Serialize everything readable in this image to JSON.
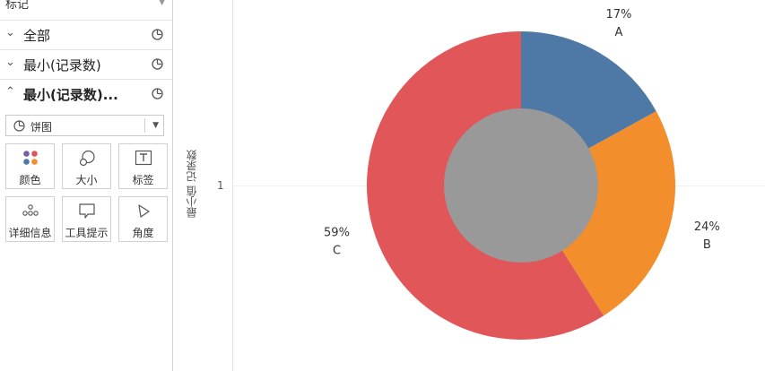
{
  "marks_panel": {
    "header": "标记",
    "shelves": [
      {
        "label": "全部",
        "bold": false,
        "expanded": false
      },
      {
        "label": "最小(记录数)",
        "bold": false,
        "expanded": false
      },
      {
        "label": "最小(记录数)...",
        "bold": true,
        "expanded": true
      }
    ],
    "mark_type": "饼图",
    "buttons": [
      {
        "label": "颜色",
        "icon": "color-dots-icon"
      },
      {
        "label": "大小",
        "icon": "size-icon"
      },
      {
        "label": "标签",
        "icon": "text-label-icon"
      },
      {
        "label": "详细信息",
        "icon": "detail-dots-icon"
      },
      {
        "label": "工具提示",
        "icon": "tooltip-icon"
      },
      {
        "label": "角度",
        "icon": "angle-icon"
      }
    ]
  },
  "view": {
    "axis_title": "最小值 记录数",
    "tick_label": "1"
  },
  "chart_data": {
    "type": "pie",
    "donut": true,
    "hole_color": "#999999",
    "categories": [
      "A",
      "B",
      "C"
    ],
    "values": [
      17,
      24,
      59
    ],
    "labels": [
      "17%",
      "24%",
      "59%"
    ],
    "colors": [
      "#4e79a7",
      "#f28e2b",
      "#e15759"
    ]
  }
}
